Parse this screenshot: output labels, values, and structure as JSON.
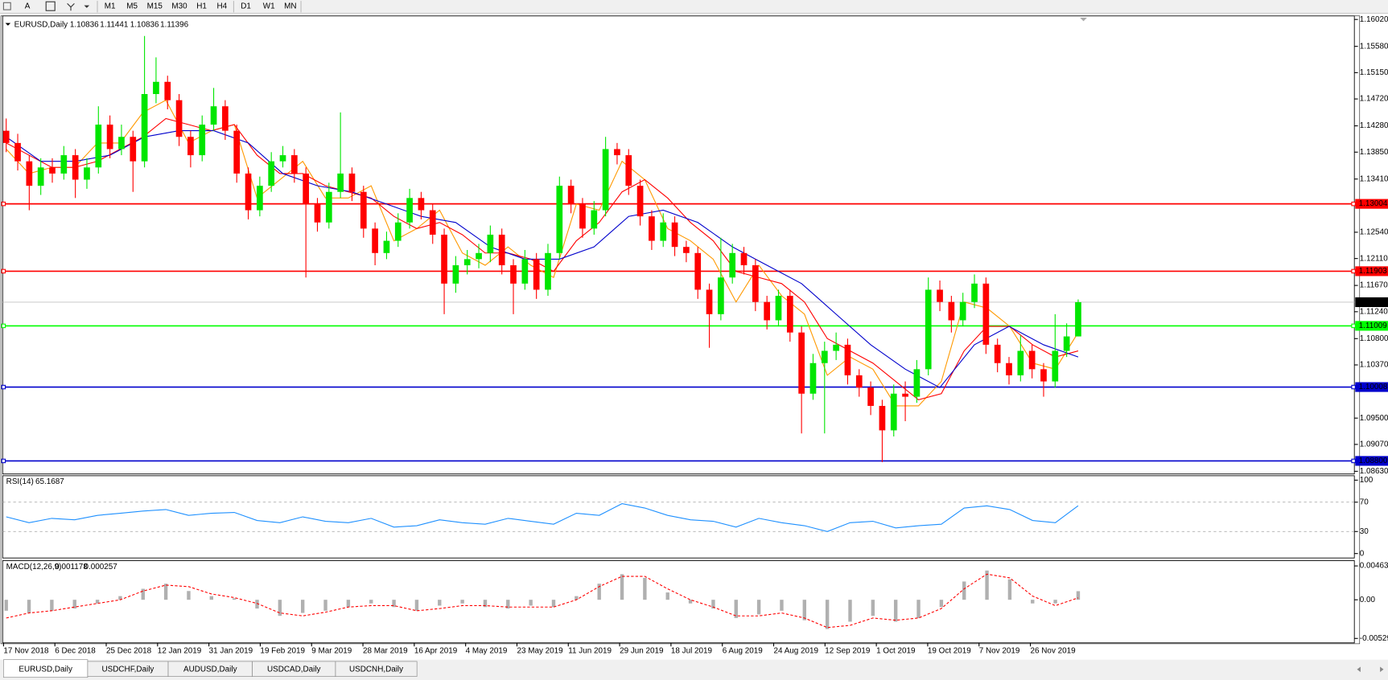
{
  "toolbar": {
    "font_icon": "A",
    "timeframes": [
      "M1",
      "M5",
      "M15",
      "M30",
      "H1",
      "H4",
      "D1",
      "W1",
      "MN"
    ]
  },
  "chart_data": [
    {
      "type": "candlestick",
      "title": "EURUSD,Daily",
      "up_color": "#00e600",
      "down_color": "#ff0000",
      "ohlc": [
        [
          1.142,
          1.144,
          1.1385,
          1.14
        ],
        [
          1.14,
          1.1415,
          1.1355,
          1.137
        ],
        [
          1.137,
          1.138,
          1.129,
          1.133
        ],
        [
          1.133,
          1.1375,
          1.1315,
          1.136
        ],
        [
          1.136,
          1.1375,
          1.1335,
          1.135
        ],
        [
          1.135,
          1.1395,
          1.134,
          1.138
        ],
        [
          1.138,
          1.139,
          1.131,
          1.134
        ],
        [
          1.134,
          1.1375,
          1.1325,
          1.136
        ],
        [
          1.136,
          1.146,
          1.135,
          1.143
        ],
        [
          1.143,
          1.1445,
          1.1375,
          1.139
        ],
        [
          1.139,
          1.143,
          1.138,
          1.141
        ],
        [
          1.141,
          1.142,
          1.132,
          1.137
        ],
        [
          1.137,
          1.1575,
          1.136,
          1.148
        ],
        [
          1.148,
          1.154,
          1.1465,
          1.15
        ],
        [
          1.15,
          1.151,
          1.1455,
          1.147
        ],
        [
          1.147,
          1.148,
          1.1395,
          1.141
        ],
        [
          1.141,
          1.142,
          1.136,
          1.138
        ],
        [
          1.138,
          1.1445,
          1.137,
          1.143
        ],
        [
          1.143,
          1.149,
          1.142,
          1.146
        ],
        [
          1.146,
          1.147,
          1.1405,
          1.142
        ],
        [
          1.142,
          1.143,
          1.1335,
          1.135
        ],
        [
          1.135,
          1.136,
          1.1275,
          1.129
        ],
        [
          1.129,
          1.1345,
          1.128,
          1.133
        ],
        [
          1.133,
          1.1385,
          1.132,
          1.137
        ],
        [
          1.137,
          1.1395,
          1.136,
          1.138
        ],
        [
          1.138,
          1.139,
          1.1335,
          1.135
        ],
        [
          1.135,
          1.136,
          1.118,
          1.13
        ],
        [
          1.13,
          1.131,
          1.1255,
          1.127
        ],
        [
          1.127,
          1.1335,
          1.126,
          1.132
        ],
        [
          1.132,
          1.145,
          1.131,
          1.135
        ],
        [
          1.135,
          1.136,
          1.1305,
          1.132
        ],
        [
          1.132,
          1.133,
          1.1245,
          1.126
        ],
        [
          1.126,
          1.127,
          1.12,
          1.122
        ],
        [
          1.122,
          1.1255,
          1.121,
          1.124
        ],
        [
          1.124,
          1.1285,
          1.123,
          1.127
        ],
        [
          1.127,
          1.1325,
          1.126,
          1.131
        ],
        [
          1.131,
          1.132,
          1.1275,
          1.129
        ],
        [
          1.129,
          1.13,
          1.1235,
          1.125
        ],
        [
          1.125,
          1.126,
          1.112,
          1.117
        ],
        [
          1.117,
          1.1215,
          1.1155,
          1.12
        ],
        [
          1.12,
          1.1225,
          1.1185,
          1.121
        ],
        [
          1.121,
          1.1235,
          1.1195,
          1.122
        ],
        [
          1.122,
          1.1265,
          1.1205,
          1.125
        ],
        [
          1.125,
          1.126,
          1.1185,
          1.12
        ],
        [
          1.12,
          1.121,
          1.112,
          1.117
        ],
        [
          1.117,
          1.1225,
          1.116,
          1.121
        ],
        [
          1.121,
          1.122,
          1.1145,
          1.116
        ],
        [
          1.116,
          1.1235,
          1.115,
          1.122
        ],
        [
          1.122,
          1.1345,
          1.121,
          1.133
        ],
        [
          1.133,
          1.134,
          1.1285,
          1.13
        ],
        [
          1.13,
          1.131,
          1.1245,
          1.126
        ],
        [
          1.126,
          1.1305,
          1.125,
          1.129
        ],
        [
          1.129,
          1.141,
          1.128,
          1.139
        ],
        [
          1.139,
          1.14,
          1.1365,
          1.138
        ],
        [
          1.138,
          1.139,
          1.1315,
          1.133
        ],
        [
          1.133,
          1.134,
          1.1265,
          1.128
        ],
        [
          1.128,
          1.129,
          1.1225,
          1.124
        ],
        [
          1.124,
          1.1285,
          1.123,
          1.127
        ],
        [
          1.127,
          1.128,
          1.1215,
          1.123
        ],
        [
          1.123,
          1.124,
          1.1205,
          1.122
        ],
        [
          1.122,
          1.123,
          1.1145,
          1.116
        ],
        [
          1.116,
          1.117,
          1.1065,
          1.112
        ],
        [
          1.112,
          1.1245,
          1.111,
          1.118
        ],
        [
          1.118,
          1.1235,
          1.117,
          1.122
        ],
        [
          1.122,
          1.123,
          1.1185,
          1.12
        ],
        [
          1.12,
          1.121,
          1.1125,
          1.114
        ],
        [
          1.114,
          1.115,
          1.1095,
          1.111
        ],
        [
          1.111,
          1.116,
          1.11,
          1.115
        ],
        [
          1.115,
          1.116,
          1.1075,
          1.109
        ],
        [
          1.109,
          1.11,
          1.0925,
          1.099
        ],
        [
          1.099,
          1.1055,
          1.098,
          1.104
        ],
        [
          1.104,
          1.1075,
          1.0925,
          1.106
        ],
        [
          1.106,
          1.109,
          1.1045,
          1.107
        ],
        [
          1.107,
          1.108,
          1.1005,
          1.102
        ],
        [
          1.102,
          1.103,
          1.0985,
          1.1
        ],
        [
          1.1,
          1.101,
          1.0955,
          1.097
        ],
        [
          1.097,
          1.098,
          1.0878,
          1.093
        ],
        [
          1.093,
          1.1005,
          1.092,
          1.099
        ],
        [
          1.099,
          1.101,
          1.0945,
          1.0985
        ],
        [
          1.0985,
          1.1045,
          1.0975,
          1.103
        ],
        [
          1.103,
          1.118,
          1.102,
          1.116
        ],
        [
          1.116,
          1.1175,
          1.1125,
          1.114
        ],
        [
          1.114,
          1.115,
          1.109,
          1.111
        ],
        [
          1.111,
          1.1155,
          1.11,
          1.114
        ],
        [
          1.114,
          1.1185,
          1.113,
          1.117
        ],
        [
          1.117,
          1.118,
          1.1055,
          1.107
        ],
        [
          1.107,
          1.108,
          1.1025,
          1.104
        ],
        [
          1.104,
          1.105,
          1.1005,
          1.102
        ],
        [
          1.102,
          1.1085,
          1.101,
          1.106
        ],
        [
          1.106,
          1.107,
          1.1015,
          1.103
        ],
        [
          1.103,
          1.104,
          1.0985,
          1.101
        ],
        [
          1.101,
          1.112,
          1.1,
          1.106
        ],
        [
          1.106,
          1.1105,
          1.105,
          1.10836
        ],
        [
          1.10836,
          1.11441,
          1.10836,
          1.11396
        ]
      ],
      "series": [
        {
          "color": "#ff9900",
          "values": [
            1.139,
            1.135,
            1.136,
            1.136,
            1.14,
            1.14,
            1.145,
            1.147,
            1.14,
            1.142,
            1.143,
            1.131,
            1.134,
            1.137,
            1.131,
            1.131,
            1.133,
            1.124,
            1.126,
            1.129,
            1.122,
            1.12,
            1.123,
            1.12,
            1.118,
            1.13,
            1.129,
            1.137,
            1.134,
            1.126,
            1.124,
            1.121,
            1.114,
            1.12,
            1.115,
            1.112,
            1.102,
            1.105,
            1.103,
            1.097,
            1.097,
            1.101,
            1.114,
            1.113,
            1.11,
            1.104,
            1.103,
            1.109
          ]
        },
        {
          "color": "#ff0000",
          "values": [
            1.14,
            1.138,
            1.136,
            1.136,
            1.137,
            1.139,
            1.141,
            1.144,
            1.143,
            1.142,
            1.143,
            1.138,
            1.135,
            1.135,
            1.133,
            1.132,
            1.131,
            1.128,
            1.126,
            1.127,
            1.125,
            1.122,
            1.122,
            1.121,
            1.119,
            1.124,
            1.127,
            1.132,
            1.134,
            1.131,
            1.127,
            1.124,
            1.119,
            1.118,
            1.117,
            1.114,
            1.108,
            1.106,
            1.104,
            1.101,
            1.098,
            1.099,
            1.106,
            1.11,
            1.11,
            1.107,
            1.105,
            1.106
          ]
        },
        {
          "color": "#0000cc",
          "values": [
            1.141,
            1.137,
            1.137,
            1.138,
            1.141,
            1.142,
            1.142,
            1.14,
            1.135,
            1.133,
            1.132,
            1.13,
            1.128,
            1.127,
            1.123,
            1.121,
            1.121,
            1.123,
            1.128,
            1.129,
            1.127,
            1.123,
            1.12,
            1.117,
            1.112,
            1.107,
            1.103,
            1.1,
            1.107,
            1.11,
            1.107,
            1.105
          ]
        }
      ],
      "current_price_color": "#c0c0c0",
      "levels": [
        {
          "value": 1.13004,
          "color": "#ff0000"
        },
        {
          "value": 1.11903,
          "color": "#ff0000"
        },
        {
          "value": 1.11009,
          "color": "#00ff00"
        },
        {
          "value": 1.10008,
          "color": "#0000cc"
        },
        {
          "value": 1.088,
          "label": "1.08800",
          "color": "#0000cc"
        }
      ],
      "ylim": [
        1.0863,
        1.1602
      ],
      "yticks": [
        {
          "value": 1.1602,
          "label": "1.16020"
        },
        {
          "value": 1.1558,
          "label": "1.15580"
        },
        {
          "value": 1.1515,
          "label": "1.15150"
        },
        {
          "value": 1.1472,
          "label": "1.14720"
        },
        {
          "value": 1.1428,
          "label": "1.14280"
        },
        {
          "value": 1.1385,
          "label": "1.13850"
        },
        {
          "value": 1.1341,
          "label": "1.13410"
        },
        {
          "value": 1.1254,
          "label": "1.12540"
        },
        {
          "value": 1.1211,
          "label": "1.12110"
        },
        {
          "value": 1.1167,
          "label": "1.11670"
        },
        {
          "value": 1.1124,
          "label": "1.11240"
        },
        {
          "value": 1.108,
          "label": "1.10800"
        },
        {
          "value": 1.1037,
          "label": "1.10370"
        },
        {
          "value": 1.095,
          "label": "1.09500"
        },
        {
          "value": 1.0907,
          "label": "1.09070"
        },
        {
          "value": 1.0863,
          "label": "1.08630"
        }
      ]
    },
    {
      "type": "line",
      "title": "RSI(14)",
      "color": "#1e90ff",
      "values": [
        50,
        42,
        48,
        46,
        52,
        55,
        58,
        60,
        52,
        55,
        56,
        45,
        42,
        50,
        44,
        42,
        48,
        36,
        38,
        46,
        42,
        40,
        48,
        44,
        40,
        55,
        52,
        68,
        62,
        52,
        46,
        44,
        36,
        48,
        42,
        38,
        30,
        42,
        44,
        35,
        38,
        40,
        62,
        65,
        60,
        45,
        42,
        65.1687
      ],
      "ylim": [
        0,
        100
      ],
      "yticks": [
        100,
        70,
        30,
        0
      ],
      "grid": "dashed"
    },
    {
      "type": "macd",
      "title": "MACD(12,26,9)",
      "histogram": {
        "color": "#b0b0b0",
        "values": [
          -0.0015,
          -0.0018,
          -0.0015,
          -0.0012,
          -0.0005,
          0.0005,
          0.0015,
          0.0022,
          0.0012,
          0.0005,
          0.0002,
          -0.0012,
          -0.0022,
          -0.0018,
          -0.0015,
          -0.001,
          -0.0005,
          -0.001,
          -0.0015,
          -0.0008,
          -0.0005,
          -0.001,
          -0.0012,
          -0.0008,
          -0.001,
          0.0005,
          0.0022,
          0.0035,
          0.003,
          0.001,
          -0.0005,
          -0.0012,
          -0.0025,
          -0.002,
          -0.0015,
          -0.0028,
          -0.004,
          -0.003,
          -0.0022,
          -0.003,
          -0.0025,
          -0.001,
          0.0025,
          0.004,
          0.0028,
          -0.0005,
          -0.0005,
          0.001178
        ]
      },
      "signal": {
        "color": "#ff0000",
        "values": [
          -0.0025,
          -0.0018,
          -0.0015,
          -0.001,
          -0.0005,
          0,
          0.0012,
          0.002,
          0.0018,
          0.0008,
          0.0003,
          -0.0005,
          -0.0018,
          -0.0022,
          -0.0017,
          -0.001,
          -0.0008,
          -0.0008,
          -0.0015,
          -0.0012,
          -0.0008,
          -0.0008,
          -0.001,
          -0.001,
          -0.001,
          0,
          0.0018,
          0.0032,
          0.0032,
          0.0015,
          0,
          -0.001,
          -0.0022,
          -0.0022,
          -0.0018,
          -0.0025,
          -0.0038,
          -0.0035,
          -0.0025,
          -0.0028,
          -0.0025,
          -0.0012,
          0.0015,
          0.0035,
          0.003,
          0.0005,
          -0.0008,
          0.000257
        ]
      },
      "ylim": [
        -0.00529,
        0.00463
      ],
      "yticks": [
        0.00463,
        {
          "value": 0,
          "label": "0.00"
        },
        -0.00529
      ]
    }
  ],
  "date_labels": [
    "17 Nov 2018",
    "6 Dec 2018",
    "25 Dec 2018",
    "12 Jan 2019",
    "31 Jan 2019",
    "19 Feb 2019",
    "9 Mar 2019",
    "28 Mar 2019",
    "16 Apr 2019",
    "4 May 2019",
    "23 May 2019",
    "11 Jun 2019",
    "29 Jun 2019",
    "18 Jul 2019",
    "6 Aug 2019",
    "24 Aug 2019",
    "12 Sep 2019",
    "1 Oct 2019",
    "19 Oct 2019",
    "7 Nov 2019",
    "26 Nov 2019"
  ],
  "tabs": [
    "EURUSD,Daily",
    "USDCHF,Daily",
    "AUDUSD,Daily",
    "USDCAD,Daily",
    "USDCNH,Daily"
  ]
}
